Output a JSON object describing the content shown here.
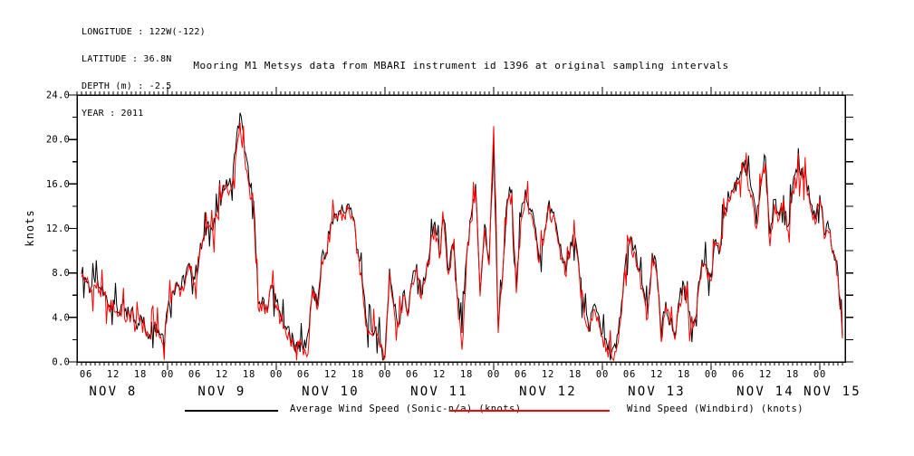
{
  "header": {
    "meta_lines": [
      "LONGITUDE : 122W(-122)",
      "LATITUDE : 36.8N",
      "DEPTH (m) : -2.5",
      "YEAR : 2011"
    ],
    "title": "Mooring M1 Metsys data from MBARI instrument id 1396 at original sampling intervals"
  },
  "legend": {
    "items": [
      {
        "label": "Average Wind Speed (Sonic-n/a) (knots)",
        "color": "#000000"
      },
      {
        "label": "Wind Speed (Windbird) (knots)",
        "color": "#ff0000"
      }
    ]
  },
  "chart_data": {
    "type": "line",
    "title": "Mooring M1 Metsys data from MBARI instrument id 1396 at original sampling intervals",
    "xlabel": "",
    "ylabel": "knots",
    "ylim": [
      0,
      24
    ],
    "y_label_tick_step": 4,
    "y_minor_tick_step": 2,
    "x_start": "2011-11-08 04:00",
    "x_end": "2011-11-15 05:36",
    "x_minor_tick_interval_hours": 1,
    "x_label_interval_hours": 6,
    "hour_label_cycle": [
      "06",
      "12",
      "18",
      "00"
    ],
    "day_labels": [
      "NOV 8",
      "NOV 9",
      "NOV 10",
      "NOV 11",
      "NOV 12",
      "NOV 13",
      "NOV 14",
      "NOV 15"
    ],
    "grid": "off",
    "legend_position": "bottom",
    "high_frequency_noise_knots": 0.9,
    "series": [
      {
        "name": "Average Wind Speed (Sonic-n/a) (knots)",
        "color": "#000000",
        "start_hour_since_nov8_00": 5,
        "step_hours": 1,
        "values": [
          7.9,
          7.4,
          6.6,
          7.1,
          6.7,
          6.2,
          5.1,
          5.6,
          4.4,
          5.2,
          4.0,
          4.7,
          3.4,
          4.2,
          3.1,
          2.5,
          3.6,
          2.9,
          2.4,
          4.8,
          6.3,
          7.2,
          6.6,
          7.8,
          8.6,
          7.4,
          9.6,
          11.2,
          12.6,
          11.8,
          13.4,
          15.2,
          16.4,
          15.8,
          18.9,
          22.4,
          19.0,
          16.2,
          14.5,
          5.2,
          5.8,
          4.7,
          6.9,
          5.4,
          4.0,
          3.2,
          2.4,
          1.4,
          1.8,
          1.1,
          2.6,
          6.8,
          5.0,
          9.4,
          9.8,
          12.4,
          13.2,
          13.6,
          13.4,
          14.2,
          13.0,
          10.1,
          7.2,
          3.4,
          2.8,
          3.2,
          1.6,
          0.6,
          8.4,
          5.0,
          3.4,
          6.2,
          4.4,
          7.4,
          8.8,
          6.0,
          7.8,
          10.4,
          12.6,
          9.6,
          12.8,
          8.2,
          10.6,
          5.8,
          2.6,
          9.4,
          13.0,
          16.0,
          6.2,
          12.4,
          9.0,
          19.8,
          3.0,
          8.0,
          14.6,
          15.5,
          6.6,
          13.0,
          15.5,
          13.8,
          12.4,
          9.2,
          11.0,
          14.0,
          13.4,
          11.8,
          9.6,
          8.0,
          10.8,
          11.2,
          7.6,
          4.4,
          3.0,
          5.0,
          4.4,
          2.6,
          1.6,
          0.8,
          1.2,
          4.0,
          8.6,
          11.0,
          10.2,
          8.4,
          6.6,
          4.2,
          9.8,
          8.2,
          2.2,
          5.4,
          3.6,
          2.4,
          5.6,
          6.9,
          4.6,
          3.4,
          6.0,
          9.2,
          8.5,
          7.6,
          11.0,
          10.2,
          13.9,
          14.8,
          15.6,
          16.4,
          18.0,
          16.8,
          15.4,
          12.4,
          16.2,
          18.4,
          11.5,
          14.6,
          13.2,
          15.0,
          12.2,
          15.8,
          17.0,
          17.4,
          16.6,
          14.2,
          12.8,
          15.0,
          11.4,
          12.0,
          10.0,
          8.0,
          2.3
        ]
      },
      {
        "name": "Wind Speed (Windbird) (knots)",
        "color": "#ff0000",
        "start_hour_since_nov8_00": 5,
        "step_hours": 1,
        "values": [
          7.6,
          7.2,
          6.3,
          6.9,
          6.4,
          6.0,
          4.8,
          5.4,
          4.1,
          5.0,
          3.7,
          4.5,
          3.1,
          4.0,
          2.8,
          2.2,
          3.4,
          2.6,
          1.6,
          4.5,
          6.1,
          6.9,
          6.4,
          7.5,
          8.3,
          7.1,
          9.3,
          10.9,
          12.2,
          11.5,
          13.0,
          14.8,
          16.0,
          15.5,
          18.4,
          21.5,
          18.5,
          15.8,
          14.0,
          4.9,
          5.5,
          4.4,
          6.6,
          5.1,
          3.8,
          2.9,
          2.1,
          1.1,
          1.5,
          0.6,
          0.7,
          6.5,
          4.7,
          9.1,
          9.5,
          12.1,
          12.9,
          13.3,
          13.1,
          13.9,
          12.7,
          9.8,
          6.9,
          3.1,
          2.5,
          2.9,
          1.3,
          0.4,
          8.1,
          4.7,
          3.1,
          5.9,
          4.1,
          7.1,
          8.5,
          5.7,
          7.5,
          10.1,
          12.2,
          9.3,
          12.4,
          7.9,
          10.2,
          5.5,
          1.1,
          9.1,
          12.6,
          15.6,
          5.9,
          12.0,
          8.7,
          21.2,
          2.6,
          7.7,
          14.2,
          15.1,
          6.2,
          12.6,
          15.1,
          13.4,
          12.0,
          8.9,
          10.7,
          13.6,
          13.0,
          11.4,
          9.3,
          7.7,
          10.4,
          10.8,
          7.3,
          4.1,
          2.7,
          4.7,
          4.1,
          2.3,
          1.3,
          0.5,
          0.9,
          3.7,
          8.3,
          10.7,
          9.9,
          8.1,
          6.3,
          3.9,
          9.5,
          7.9,
          1.8,
          5.1,
          3.3,
          2.0,
          5.3,
          6.6,
          4.3,
          3.1,
          5.7,
          8.9,
          8.2,
          7.3,
          10.7,
          9.9,
          13.5,
          14.4,
          15.2,
          16.0,
          17.5,
          16.4,
          15.0,
          12.0,
          15.8,
          17.9,
          10.4,
          14.2,
          12.8,
          14.6,
          11.8,
          15.4,
          16.6,
          17.0,
          16.2,
          13.8,
          12.4,
          14.6,
          11.1,
          11.6,
          9.7,
          7.7,
          2.1
        ]
      }
    ]
  }
}
